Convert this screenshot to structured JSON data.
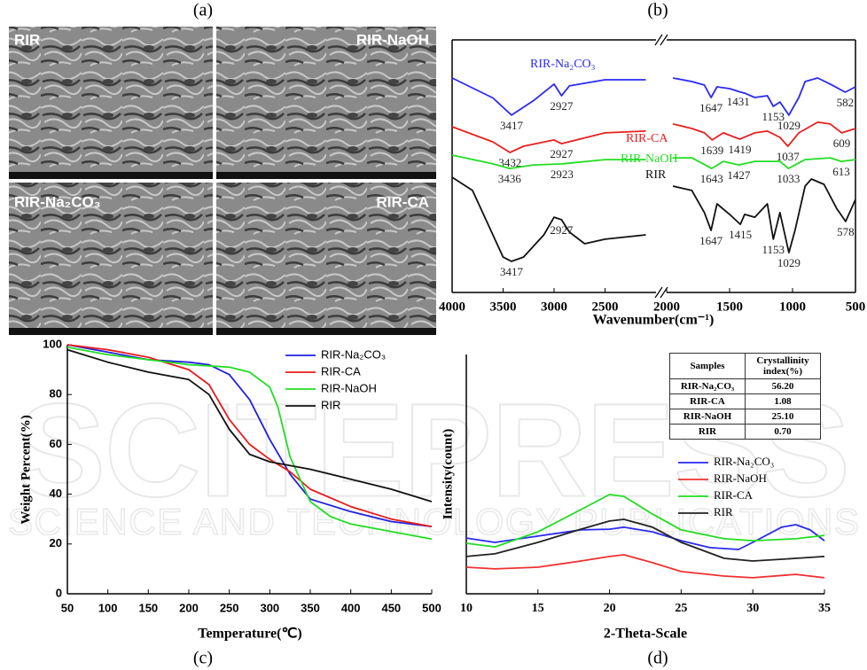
{
  "panel_labels": [
    "(a)",
    "(b)",
    "(c)",
    "(d)"
  ],
  "sem_images": [
    "RIR",
    "RIR-NaOH",
    "RIR-Na₂CO₃",
    "RIR-CA"
  ],
  "watermark": [
    "SCITEPRESS",
    "SCIENCE AND TECHNOLOGY PUBLICATIONS"
  ],
  "chart_data": [
    {
      "type": "line",
      "xlabel": "Wavenumber(cm⁻¹)",
      "x_segments": [
        {
          "xlim": [
            4000,
            2000
          ],
          "xticks": [
            4000,
            3500,
            3000,
            2500
          ]
        },
        {
          "xlim": [
            2000,
            500
          ],
          "xticks": [
            2000,
            1500,
            1000,
            500
          ]
        }
      ],
      "ylim": [
        0,
        100
      ],
      "series": [
        {
          "name": "RIR-Na₂CO₃",
          "color": "#2a2af0",
          "x": [
            4000,
            3600,
            3417,
            3200,
            3000,
            2927,
            2850,
            2500,
            2100,
            1950,
            1800,
            1700,
            1647,
            1600,
            1500,
            1431,
            1380,
            1300,
            1200,
            1153,
            1100,
            1029,
            950,
            900,
            800,
            700,
            582,
            500
          ],
          "values": [
            84.9,
            77,
            70.2,
            76,
            82.5,
            77.9,
            81.8,
            84.2,
            84.2,
            84.9,
            83.5,
            82.1,
            77.2,
            81.4,
            80.7,
            79.6,
            78.9,
            77.2,
            77.9,
            73.7,
            75.4,
            70.2,
            77.2,
            83.5,
            84.9,
            82.5,
            79.3,
            81.4
          ],
          "peaks": [
            3417,
            2927,
            1647,
            1431,
            1153,
            1029,
            582
          ]
        },
        {
          "name": "RIR-CA",
          "color": "#e82020",
          "x": [
            4000,
            3600,
            3432,
            3300,
            3000,
            2927,
            2500,
            2100,
            1950,
            1800,
            1700,
            1639,
            1550,
            1419,
            1300,
            1200,
            1100,
            1037,
            950,
            800,
            700,
            609,
            500
          ],
          "values": [
            65.6,
            59.6,
            55.4,
            57.9,
            60.4,
            58.9,
            63.2,
            63.9,
            66.7,
            64.9,
            63.2,
            60.4,
            63.2,
            60.7,
            63.2,
            63.9,
            61.4,
            57.9,
            63.2,
            67.4,
            66.7,
            63.2,
            64.9
          ],
          "peaks": [
            3432,
            2927,
            1639,
            1419,
            1037,
            609
          ]
        },
        {
          "name": "RIR-NaOH",
          "color": "#22dd22",
          "x": [
            4000,
            3600,
            3436,
            3200,
            2923,
            2500,
            2100,
            1950,
            1800,
            1643,
            1550,
            1427,
            1300,
            1100,
            1033,
            900,
            700,
            613,
            500
          ],
          "values": [
            54.4,
            50.9,
            49.1,
            50.5,
            50.9,
            52.6,
            52.6,
            53.3,
            53.3,
            49.1,
            51.9,
            50.5,
            51.9,
            51.9,
            49.1,
            52.6,
            53.3,
            51.9,
            52.6
          ],
          "peaks": [
            3436,
            2923,
            1643,
            1427,
            1033,
            613
          ]
        },
        {
          "name": "RIR",
          "color": "#111111",
          "x": [
            4000,
            3800,
            3600,
            3500,
            3417,
            3300,
            3100,
            3000,
            2927,
            2850,
            2700,
            2500,
            2100,
            1950,
            1800,
            1700,
            1647,
            1600,
            1500,
            1415,
            1380,
            1300,
            1200,
            1153,
            1100,
            1029,
            980,
            900,
            850,
            750,
            650,
            578,
            500
          ],
          "values": [
            45.6,
            40.4,
            22.8,
            14,
            12.3,
            14,
            22.8,
            29.8,
            28.8,
            23.9,
            19.3,
            21.1,
            22.8,
            42.1,
            40.4,
            31.6,
            24.6,
            35.1,
            30.9,
            27,
            30.9,
            29.8,
            35.1,
            21.1,
            31.6,
            15.8,
            24.6,
            42.1,
            44.9,
            42.8,
            33.3,
            28.1,
            36.8
          ],
          "peaks": [
            3417,
            2927,
            1647,
            1415,
            1153,
            1029,
            578
          ]
        }
      ]
    },
    {
      "type": "line",
      "xlabel": "Temperature(℃)",
      "ylabel": "Weight Percent(%)",
      "xlim": [
        50,
        500
      ],
      "xticks": [
        50,
        100,
        150,
        200,
        250,
        300,
        350,
        400,
        450,
        500
      ],
      "ylim": [
        0,
        100
      ],
      "yticks": [
        0,
        20,
        40,
        60,
        80,
        100
      ],
      "legend": "upper right",
      "series": [
        {
          "name": "RIR-Na₂CO₃",
          "color": "#2020e0",
          "x": [
            50,
            100,
            150,
            200,
            225,
            250,
            275,
            300,
            325,
            350,
            400,
            450,
            500
          ],
          "values": [
            100,
            97,
            94,
            93,
            92,
            88,
            78,
            62,
            48,
            38,
            33,
            29,
            27
          ]
        },
        {
          "name": "RIR-CA",
          "color": "#e81c1c",
          "x": [
            50,
            100,
            150,
            200,
            225,
            250,
            275,
            300,
            325,
            350,
            400,
            450,
            500
          ],
          "values": [
            100,
            98,
            95,
            90,
            84,
            70,
            60,
            54,
            49,
            42,
            35,
            30,
            27
          ]
        },
        {
          "name": "RIR-NaOH",
          "color": "#22dd22",
          "x": [
            50,
            100,
            150,
            200,
            250,
            275,
            300,
            310,
            325,
            350,
            375,
            400,
            450,
            500
          ],
          "values": [
            99,
            96,
            94,
            92,
            91,
            89,
            83,
            75,
            55,
            37,
            31,
            28,
            25,
            22
          ]
        },
        {
          "name": "RIR",
          "color": "#111111",
          "x": [
            50,
            100,
            150,
            200,
            225,
            250,
            275,
            300,
            350,
            400,
            450,
            500
          ],
          "values": [
            98,
            93,
            89,
            86,
            80,
            66,
            56,
            53,
            50,
            46,
            42,
            37
          ]
        }
      ]
    },
    {
      "type": "line",
      "xlabel": "2-Theta-Scale",
      "ylabel": "Intensity(count)",
      "xlim": [
        10,
        35
      ],
      "xticks": [
        10,
        15,
        20,
        25,
        30,
        35
      ],
      "ylim": [
        0,
        100
      ],
      "legend": "center right",
      "table": {
        "header": [
          "Samples",
          "Crystallinity index(%)"
        ],
        "rows": [
          [
            "RIR-Na₂CO₃",
            "56.20"
          ],
          [
            "RIR-CA",
            "1.08"
          ],
          [
            "RIR-NaOH",
            "25.10"
          ],
          [
            "RIR",
            "0.70"
          ]
        ]
      },
      "series": [
        {
          "name": "RIR-Na₂CO₃",
          "color": "#2a2af0",
          "x": [
            10,
            12,
            15,
            18,
            20,
            21,
            23,
            25,
            27,
            29,
            30,
            32,
            33,
            34,
            35
          ],
          "values": [
            23.3,
            21.5,
            24.1,
            26.7,
            27,
            27.8,
            25.9,
            22.2,
            19.3,
            18.5,
            21.5,
            27.8,
            28.9,
            26.7,
            22.2
          ]
        },
        {
          "name": "RIR-NaOH",
          "color": "#f03030",
          "x": [
            10,
            12,
            15,
            18,
            20,
            21,
            23,
            25,
            28,
            30,
            33,
            35
          ],
          "values": [
            11.1,
            10.4,
            11.1,
            13.7,
            15.6,
            16.3,
            13,
            9.3,
            7.4,
            6.7,
            8.1,
            6.7
          ]
        },
        {
          "name": "RIR-CA",
          "color": "#22dd22",
          "x": [
            10,
            12,
            15,
            18,
            20,
            21,
            23,
            25,
            28,
            30,
            33,
            35
          ],
          "values": [
            21.1,
            19.6,
            25.9,
            35.2,
            41.5,
            40.7,
            33.3,
            26.7,
            23,
            22.2,
            23,
            24.4
          ]
        },
        {
          "name": "RIR",
          "color": "#222222",
          "x": [
            10,
            12,
            15,
            18,
            20,
            21,
            23,
            25,
            28,
            30,
            33,
            35
          ],
          "values": [
            15.6,
            16.7,
            21.5,
            27,
            30.4,
            31.1,
            27.8,
            21.5,
            14.8,
            13.7,
            14.8,
            15.6
          ]
        }
      ]
    }
  ]
}
